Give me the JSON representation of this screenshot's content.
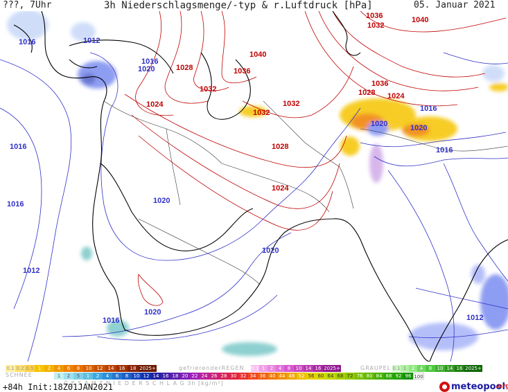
{
  "header": {
    "left": "???, 7Uhr",
    "title": "3h Niederschlagsmenge/-typ & r.Luftdruck [hPa]",
    "date": "05. Januar 2021"
  },
  "colors": {
    "high_isobar": "#c00000",
    "low_isobar": "#3030c8",
    "coast": "#000000",
    "snow_yellow": "#f5c400",
    "snow_orange": "#f08000",
    "rain_blue": "#7a8cf0",
    "rain_purple": "#b070d8",
    "graupel_teal": "#7cc8c8"
  },
  "map": {
    "pressure_labels_high": [
      {
        "text": "1040"
      },
      {
        "text": "1036"
      },
      {
        "text": "1032"
      },
      {
        "text": "1040"
      },
      {
        "text": "1028"
      },
      {
        "text": "1036"
      },
      {
        "text": "1032"
      },
      {
        "text": "1024"
      },
      {
        "text": "1032"
      },
      {
        "text": "1032"
      },
      {
        "text": "1028"
      },
      {
        "text": "1024"
      },
      {
        "text": "1036"
      },
      {
        "text": "1028"
      },
      {
        "text": "1024"
      }
    ],
    "pressure_labels_low": [
      {
        "text": "1016"
      },
      {
        "text": "1012"
      },
      {
        "text": "1016"
      },
      {
        "text": "1020"
      },
      {
        "text": "1016"
      },
      {
        "text": "1016"
      },
      {
        "text": "1020"
      },
      {
        "text": "1020"
      },
      {
        "text": "1012"
      },
      {
        "text": "1020"
      },
      {
        "text": "1016"
      },
      {
        "text": "1020"
      },
      {
        "text": "1016"
      },
      {
        "text": "1020"
      },
      {
        "text": "1016"
      },
      {
        "text": "1012"
      }
    ]
  },
  "legend": {
    "snow_label": "SCHNEE",
    "snow_values": [
      "0.1",
      "0.2",
      "0.5",
      "1",
      "2",
      "4",
      "6",
      "8",
      "10",
      "12",
      "14",
      "16",
      "18",
      "2025+"
    ],
    "rain_label": "gefrierenderREGEN",
    "rain_values": [
      "0.1",
      "1",
      "2",
      "4",
      "8",
      "10",
      "14",
      "16",
      "2025+"
    ],
    "graupel_label": "GRAUPEL",
    "graupel_values": [
      "0.1",
      "1",
      "2",
      "4",
      "8",
      "10",
      "14",
      "16",
      "2025+"
    ],
    "total_label": "G E S A M T N I E D E R S C H L A G   3h   [kg/m²]",
    "total_values": [
      "1",
      "2",
      "5",
      "1",
      "2",
      "4",
      "6",
      "8",
      "10",
      "12",
      "14",
      "16",
      "18",
      "20",
      "22",
      "24",
      "26",
      "28",
      "30",
      "32",
      "34",
      "36",
      "40",
      "44",
      "48",
      "52",
      "56",
      "60",
      "64",
      "68",
      "72",
      "76",
      "80",
      "84",
      "88",
      "92",
      "96",
      "100"
    ]
  },
  "footer": {
    "run": "+84h  Init:18Z01JAN2021",
    "brand_main": "meteopool",
    "brand_suffix": ".org"
  }
}
